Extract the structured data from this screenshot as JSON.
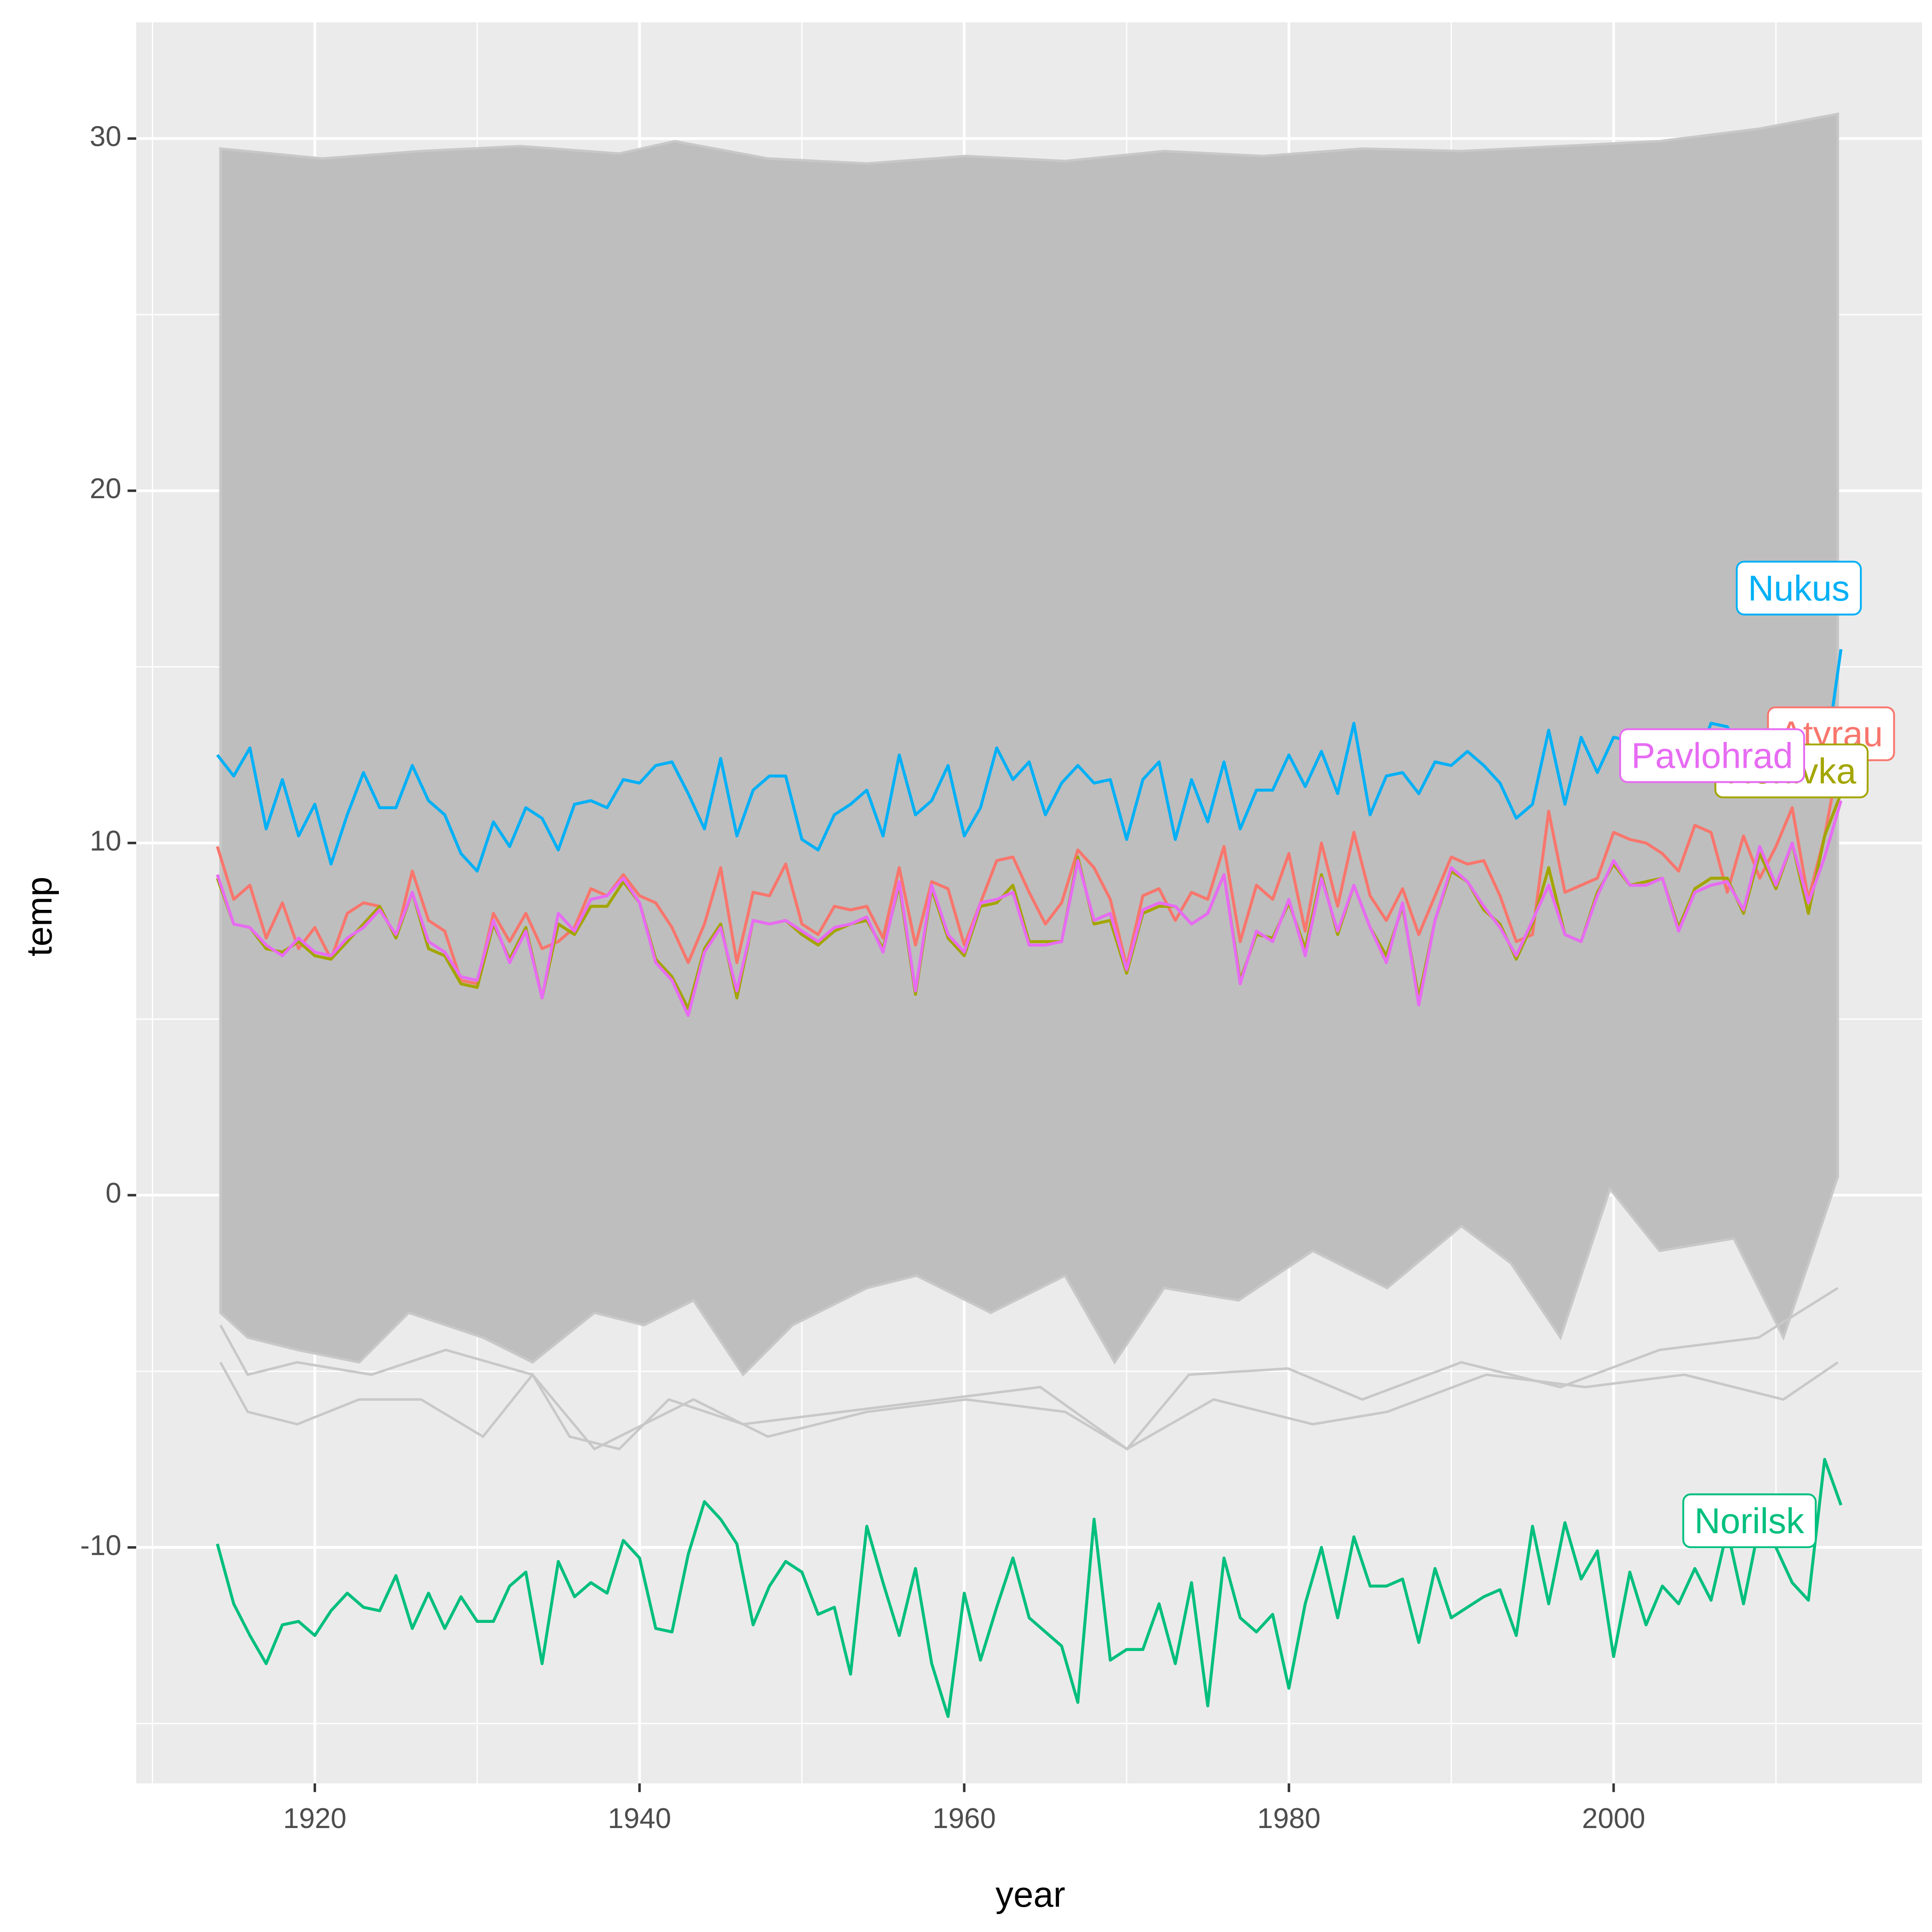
{
  "chart_data": {
    "type": "line",
    "x_label": "year",
    "y_label": "temp",
    "x": [
      1914,
      1915,
      1916,
      1917,
      1918,
      1919,
      1920,
      1921,
      1922,
      1923,
      1924,
      1925,
      1926,
      1927,
      1928,
      1929,
      1930,
      1931,
      1932,
      1933,
      1934,
      1935,
      1936,
      1937,
      1938,
      1939,
      1940,
      1941,
      1942,
      1943,
      1944,
      1945,
      1946,
      1947,
      1948,
      1949,
      1950,
      1951,
      1952,
      1953,
      1954,
      1955,
      1956,
      1957,
      1958,
      1959,
      1960,
      1961,
      1962,
      1963,
      1964,
      1965,
      1966,
      1967,
      1968,
      1969,
      1970,
      1971,
      1972,
      1973,
      1974,
      1975,
      1976,
      1977,
      1978,
      1979,
      1980,
      1981,
      1982,
      1983,
      1984,
      1985,
      1986,
      1987,
      1988,
      1989,
      1990,
      1991,
      1992,
      1993,
      1994,
      1995,
      1996,
      1997,
      1998,
      1999,
      2000,
      2001,
      2002,
      2003,
      2004,
      2005,
      2006,
      2007,
      2008,
      2009,
      2010,
      2011,
      2012,
      2013,
      2014
    ],
    "series": [
      {
        "name": "Atyrau",
        "color": "#F8766D",
        "values": [
          9.9,
          8.4,
          8.8,
          7.3,
          8.3,
          7.0,
          7.6,
          6.7,
          8.0,
          8.3,
          8.2,
          7.3,
          9.2,
          7.8,
          7.5,
          6.1,
          6.0,
          8.0,
          7.2,
          8.0,
          7.0,
          7.2,
          7.6,
          8.7,
          8.5,
          9.1,
          8.5,
          8.3,
          7.6,
          6.6,
          7.7,
          9.3,
          6.6,
          8.6,
          8.5,
          9.4,
          7.7,
          7.4,
          8.2,
          8.1,
          8.2,
          7.3,
          9.3,
          7.1,
          8.9,
          8.7,
          7.1,
          8.3,
          9.5,
          9.6,
          8.6,
          7.7,
          8.3,
          9.8,
          9.3,
          8.4,
          6.5,
          8.5,
          8.7,
          7.8,
          8.6,
          8.4,
          9.9,
          7.2,
          8.8,
          8.4,
          9.7,
          7.5,
          10.0,
          8.2,
          10.3,
          8.5,
          7.8,
          8.7,
          7.4,
          8.5,
          9.6,
          9.4,
          9.5,
          8.5,
          7.2,
          7.4,
          10.9,
          8.6,
          8.8,
          9.0,
          10.3,
          10.1,
          10.0,
          9.7,
          9.2,
          10.5,
          10.3,
          8.6,
          10.2,
          9.0,
          9.9,
          11.0,
          8.4,
          10.2,
          12.7
        ]
      },
      {
        "name": "Horlivka",
        "color": "#A3A500",
        "values": [
          9.0,
          7.7,
          7.6,
          7.0,
          6.9,
          7.2,
          6.8,
          6.7,
          7.2,
          7.7,
          8.2,
          7.3,
          8.6,
          7.0,
          6.8,
          6.0,
          5.9,
          7.7,
          6.7,
          7.6,
          5.6,
          7.7,
          7.4,
          8.2,
          8.2,
          8.9,
          8.3,
          6.7,
          6.2,
          5.3,
          7.0,
          7.7,
          5.6,
          7.8,
          7.7,
          7.8,
          7.4,
          7.1,
          7.5,
          7.7,
          7.8,
          7.0,
          8.8,
          5.7,
          8.7,
          7.3,
          6.8,
          8.2,
          8.3,
          8.8,
          7.2,
          7.2,
          7.2,
          9.6,
          7.7,
          7.8,
          6.3,
          8.0,
          8.2,
          8.2,
          7.7,
          8.0,
          9.1,
          6.1,
          7.4,
          7.3,
          8.3,
          7.0,
          9.1,
          7.4,
          8.8,
          7.6,
          6.8,
          8.2,
          5.6,
          7.8,
          9.2,
          8.9,
          8.1,
          7.7,
          6.7,
          7.7,
          9.3,
          7.4,
          7.2,
          8.6,
          9.4,
          8.8,
          8.9,
          9.0,
          7.6,
          8.7,
          9.0,
          9.0,
          8.0,
          9.7,
          8.7,
          10.0,
          8.0,
          10.2,
          11.4
        ]
      },
      {
        "name": "Norilsk",
        "color": "#00BF7D",
        "values": [
          -9.9,
          -11.6,
          -12.5,
          -13.3,
          -12.2,
          -12.1,
          -12.5,
          -11.8,
          -11.3,
          -11.7,
          -11.8,
          -10.8,
          -12.3,
          -11.3,
          -12.3,
          -11.4,
          -12.1,
          -12.1,
          -11.1,
          -10.7,
          -13.3,
          -10.4,
          -11.4,
          -11.0,
          -11.3,
          -9.8,
          -10.3,
          -12.3,
          -12.4,
          -10.2,
          -8.7,
          -9.2,
          -9.9,
          -12.2,
          -11.1,
          -10.4,
          -10.7,
          -11.9,
          -11.7,
          -13.6,
          -9.4,
          -11.0,
          -12.5,
          -10.6,
          -13.3,
          -14.8,
          -11.3,
          -13.2,
          -11.7,
          -10.3,
          -12.0,
          -12.4,
          -12.8,
          -14.4,
          -9.2,
          -13.2,
          -12.9,
          -12.9,
          -11.6,
          -13.3,
          -11.0,
          -14.5,
          -10.3,
          -12.0,
          -12.4,
          -11.9,
          -14.0,
          -11.6,
          -10.0,
          -12.0,
          -9.7,
          -11.1,
          -11.1,
          -10.9,
          -12.7,
          -10.6,
          -12.0,
          -11.7,
          -11.4,
          -11.2,
          -12.5,
          -9.4,
          -11.6,
          -9.3,
          -10.9,
          -10.1,
          -13.1,
          -10.7,
          -12.2,
          -11.1,
          -11.6,
          -10.6,
          -11.5,
          -9.5,
          -11.6,
          -9.3,
          -10.0,
          -11.0,
          -11.5,
          -7.5,
          -8.8
        ]
      },
      {
        "name": "Nukus",
        "color": "#00B0F6",
        "values": [
          12.5,
          11.9,
          12.7,
          10.4,
          11.8,
          10.2,
          11.1,
          9.4,
          10.8,
          12.0,
          11.0,
          11.0,
          12.2,
          11.2,
          10.8,
          9.7,
          9.2,
          10.6,
          9.9,
          11.0,
          10.7,
          9.8,
          11.1,
          11.2,
          11.0,
          11.8,
          11.7,
          12.2,
          12.3,
          11.4,
          10.4,
          12.4,
          10.2,
          11.5,
          11.9,
          11.9,
          10.1,
          9.8,
          10.8,
          11.1,
          11.5,
          10.2,
          12.5,
          10.8,
          11.2,
          12.2,
          10.2,
          11.0,
          12.7,
          11.8,
          12.3,
          10.8,
          11.7,
          12.2,
          11.7,
          11.8,
          10.1,
          11.8,
          12.3,
          10.1,
          11.8,
          10.6,
          12.3,
          10.4,
          11.5,
          11.5,
          12.5,
          11.6,
          12.6,
          11.4,
          13.4,
          10.8,
          11.9,
          12.0,
          11.4,
          12.3,
          12.2,
          12.6,
          12.2,
          11.7,
          10.7,
          11.1,
          13.2,
          11.1,
          13.0,
          12.0,
          13.0,
          12.9,
          12.9,
          12.7,
          12.0,
          12.2,
          13.4,
          13.3,
          12.5,
          12.8,
          12.3,
          12.8,
          13.1,
          12.2,
          15.5
        ]
      },
      {
        "name": "Pavlohrad",
        "color": "#E76BF3",
        "values": [
          9.1,
          7.7,
          7.6,
          7.1,
          6.8,
          7.3,
          6.9,
          6.8,
          7.3,
          7.6,
          8.1,
          7.4,
          8.6,
          7.2,
          6.9,
          6.2,
          6.1,
          7.8,
          6.6,
          7.5,
          5.6,
          8.0,
          7.5,
          8.4,
          8.5,
          9.0,
          8.3,
          6.6,
          6.1,
          5.1,
          6.9,
          7.6,
          5.8,
          7.8,
          7.7,
          7.8,
          7.5,
          7.2,
          7.6,
          7.7,
          7.9,
          6.9,
          8.9,
          5.8,
          8.8,
          7.4,
          6.9,
          8.3,
          8.4,
          8.6,
          7.1,
          7.1,
          7.2,
          9.5,
          7.8,
          8.0,
          6.4,
          8.1,
          8.3,
          8.2,
          7.7,
          8.0,
          9.1,
          6.0,
          7.5,
          7.2,
          8.4,
          6.8,
          9.0,
          7.5,
          8.8,
          7.6,
          6.6,
          8.3,
          5.4,
          7.8,
          9.3,
          8.9,
          8.2,
          7.6,
          6.8,
          7.8,
          8.8,
          7.4,
          7.2,
          8.5,
          9.5,
          8.8,
          8.8,
          9.0,
          7.5,
          8.6,
          8.8,
          8.9,
          8.1,
          9.9,
          8.8,
          10.0,
          8.3,
          9.6,
          11.2
        ]
      }
    ],
    "xlim": [
      1909,
      2019
    ],
    "xticks": [
      1920,
      1940,
      1960,
      1980,
      2000
    ],
    "ylim": [
      -16.7,
      33.3
    ],
    "yticks": [
      -10,
      0,
      10,
      20,
      30
    ],
    "grid": true
  }
}
